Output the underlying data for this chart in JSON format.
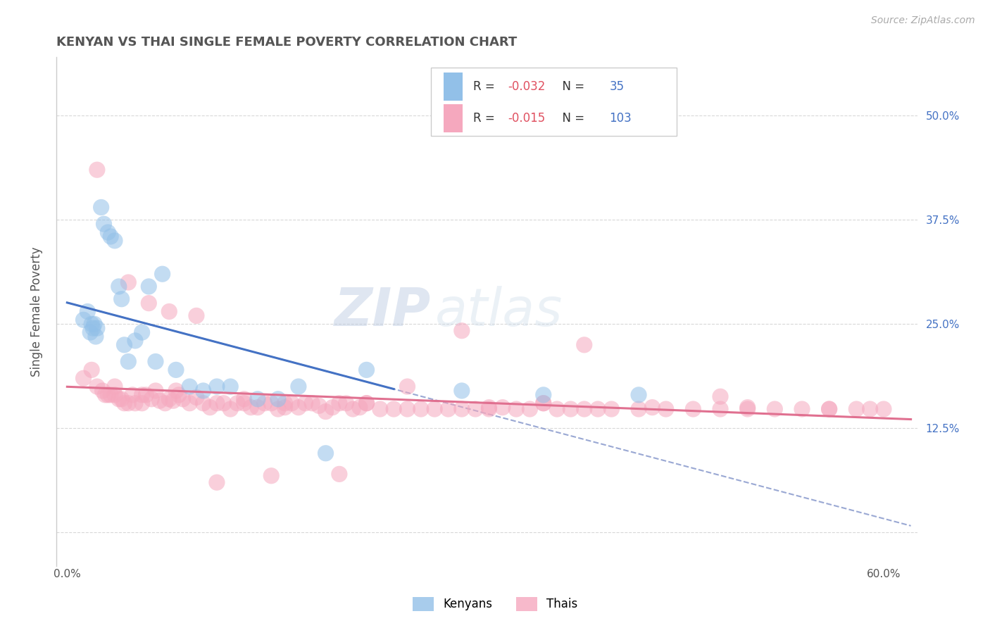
{
  "title": "KENYAN VS THAI SINGLE FEMALE POVERTY CORRELATION CHART",
  "source": "Source: ZipAtlas.com",
  "ylabel": "Single Female Poverty",
  "xlim": [
    -0.008,
    0.625
  ],
  "ylim": [
    -0.04,
    0.57
  ],
  "kenyan_R": -0.032,
  "kenyan_N": 35,
  "thai_R": -0.015,
  "thai_N": 103,
  "kenyan_color": "#92c0e8",
  "thai_color": "#f5a8be",
  "kenyan_line_color": "#4472c4",
  "thai_line_color": "#e07090",
  "dashed_line_color": "#8899cc",
  "background_color": "#ffffff",
  "grid_color": "#d8d8d8",
  "title_color": "#555555",
  "ytick_color": "#4472c4",
  "watermark_line1": "ZIP",
  "watermark_line2": "atlas",
  "marker_size": 280,
  "marker_alpha": 0.55,
  "kenyan_x": [
    0.012,
    0.015,
    0.017,
    0.018,
    0.019,
    0.02,
    0.021,
    0.022,
    0.025,
    0.027,
    0.03,
    0.032,
    0.035,
    0.038,
    0.04,
    0.042,
    0.045,
    0.05,
    0.055,
    0.06,
    0.065,
    0.07,
    0.08,
    0.09,
    0.1,
    0.11,
    0.12,
    0.14,
    0.155,
    0.17,
    0.19,
    0.22,
    0.29,
    0.35,
    0.42
  ],
  "kenyan_y": [
    0.255,
    0.265,
    0.24,
    0.25,
    0.245,
    0.25,
    0.235,
    0.245,
    0.39,
    0.37,
    0.36,
    0.355,
    0.35,
    0.295,
    0.28,
    0.225,
    0.205,
    0.23,
    0.24,
    0.295,
    0.205,
    0.31,
    0.195,
    0.175,
    0.17,
    0.175,
    0.175,
    0.16,
    0.16,
    0.175,
    0.095,
    0.195,
    0.17,
    0.165,
    0.165
  ],
  "thai_x": [
    0.012,
    0.018,
    0.022,
    0.026,
    0.028,
    0.03,
    0.032,
    0.035,
    0.038,
    0.04,
    0.042,
    0.045,
    0.048,
    0.05,
    0.055,
    0.058,
    0.062,
    0.065,
    0.068,
    0.072,
    0.075,
    0.078,
    0.082,
    0.085,
    0.09,
    0.095,
    0.1,
    0.105,
    0.11,
    0.115,
    0.12,
    0.125,
    0.13,
    0.135,
    0.14,
    0.145,
    0.15,
    0.155,
    0.16,
    0.165,
    0.17,
    0.175,
    0.18,
    0.185,
    0.19,
    0.195,
    0.2,
    0.205,
    0.21,
    0.215,
    0.22,
    0.23,
    0.24,
    0.25,
    0.26,
    0.27,
    0.28,
    0.29,
    0.3,
    0.31,
    0.32,
    0.33,
    0.34,
    0.35,
    0.36,
    0.37,
    0.38,
    0.39,
    0.4,
    0.42,
    0.44,
    0.46,
    0.48,
    0.5,
    0.52,
    0.54,
    0.56,
    0.58,
    0.022,
    0.045,
    0.06,
    0.075,
    0.095,
    0.11,
    0.15,
    0.2,
    0.25,
    0.29,
    0.38,
    0.48,
    0.035,
    0.055,
    0.08,
    0.13,
    0.16,
    0.22,
    0.31,
    0.35,
    0.43,
    0.5,
    0.56,
    0.59,
    0.6
  ],
  "thai_y": [
    0.185,
    0.195,
    0.175,
    0.17,
    0.165,
    0.165,
    0.165,
    0.165,
    0.16,
    0.16,
    0.155,
    0.155,
    0.165,
    0.155,
    0.155,
    0.165,
    0.16,
    0.17,
    0.158,
    0.155,
    0.16,
    0.158,
    0.165,
    0.16,
    0.155,
    0.162,
    0.155,
    0.15,
    0.155,
    0.155,
    0.148,
    0.155,
    0.155,
    0.15,
    0.15,
    0.155,
    0.155,
    0.148,
    0.15,
    0.155,
    0.15,
    0.155,
    0.155,
    0.152,
    0.145,
    0.15,
    0.155,
    0.155,
    0.148,
    0.15,
    0.155,
    0.148,
    0.148,
    0.148,
    0.148,
    0.148,
    0.148,
    0.148,
    0.148,
    0.148,
    0.15,
    0.148,
    0.148,
    0.155,
    0.148,
    0.148,
    0.148,
    0.148,
    0.148,
    0.148,
    0.148,
    0.148,
    0.148,
    0.148,
    0.148,
    0.148,
    0.148,
    0.148,
    0.435,
    0.3,
    0.275,
    0.265,
    0.26,
    0.06,
    0.068,
    0.07,
    0.175,
    0.242,
    0.225,
    0.163,
    0.175,
    0.165,
    0.17,
    0.16,
    0.155,
    0.155,
    0.15,
    0.155,
    0.15,
    0.15,
    0.148,
    0.148,
    0.148
  ]
}
